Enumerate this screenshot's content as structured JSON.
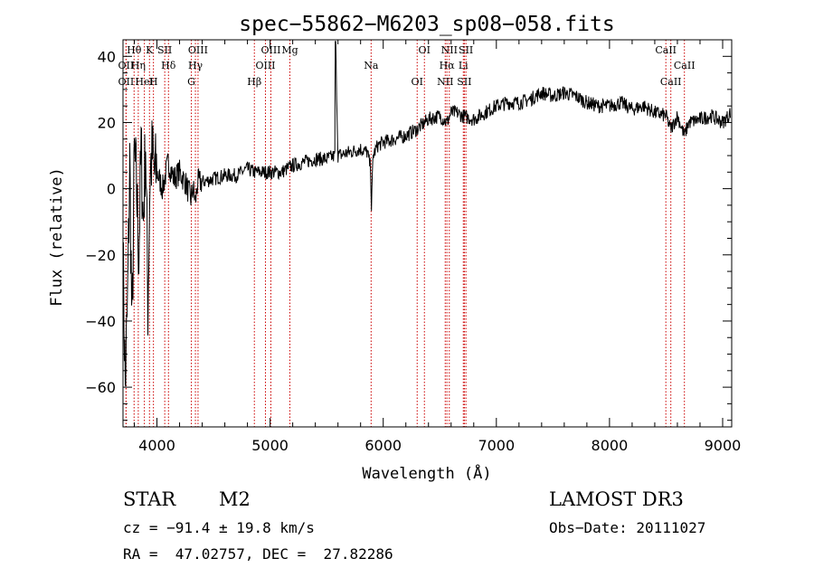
{
  "chart_data": {
    "type": "line",
    "title": "spec−55862−M6203_sp08−058.fits",
    "xlabel": "Wavelength (Å)",
    "ylabel": "Flux (relative)",
    "xlim": [
      3700,
      9080
    ],
    "ylim": [
      -72,
      45
    ],
    "x_ticks": [
      4000,
      5000,
      6000,
      7000,
      8000,
      9000
    ],
    "x_tick_labels": [
      "4000",
      "5000",
      "6000",
      "7000",
      "8000",
      "9000"
    ],
    "y_ticks": [
      -60,
      -40,
      -20,
      0,
      20,
      40
    ],
    "y_tick_labels": [
      "−60",
      "−40",
      "−20",
      "0",
      "20",
      "40"
    ],
    "series": [
      {
        "name": "spectrum",
        "x": [
          3700,
          3720,
          3740,
          3760,
          3780,
          3800,
          3820,
          3840,
          3860,
          3880,
          3900,
          3920,
          3940,
          3960,
          3980,
          4000,
          4050,
          4100,
          4150,
          4200,
          4250,
          4300,
          4320,
          4340,
          4360,
          4400,
          4500,
          4600,
          4700,
          4800,
          4861,
          4900,
          5000,
          5100,
          5200,
          5300,
          5400,
          5500,
          5577,
          5578,
          5600,
          5700,
          5800,
          5860,
          5890,
          5895,
          5910,
          5950,
          6000,
          6100,
          6200,
          6300,
          6400,
          6500,
          6563,
          6600,
          6650,
          6700,
          6800,
          6900,
          7000,
          7100,
          7200,
          7300,
          7400,
          7500,
          7600,
          7700,
          7800,
          7900,
          8000,
          8100,
          8200,
          8300,
          8400,
          8500,
          8542,
          8600,
          8662,
          8700,
          8800,
          8900,
          9000,
          9050,
          9080
        ],
        "y": [
          -20,
          -60,
          -35,
          8,
          -45,
          10,
          0,
          -20,
          12,
          -10,
          15,
          -35,
          6,
          10,
          4,
          5,
          0,
          8,
          3,
          5,
          2,
          -3,
          0,
          -4,
          2,
          2,
          3,
          4,
          4,
          6,
          5,
          5,
          5,
          5,
          7,
          8,
          9,
          9,
          10,
          45,
          10,
          11,
          12,
          11,
          6,
          -7,
          10,
          13,
          14,
          15,
          16,
          18,
          21,
          22,
          20,
          23,
          23,
          22,
          21,
          23,
          25,
          26,
          26,
          27,
          29,
          28,
          29,
          28,
          26,
          25,
          25,
          26,
          24,
          25,
          23,
          22,
          18,
          22,
          16,
          20,
          21,
          22,
          20,
          22,
          24
        ]
      }
    ],
    "annotations": [
      {
        "label": "Hθ",
        "x": 3798
      },
      {
        "label": "OII",
        "x": 3727
      },
      {
        "label": "OII",
        "x": 3727
      },
      {
        "label": "K",
        "x": 3934
      },
      {
        "label": "Hδ",
        "x": 4102
      },
      {
        "label": "HeI",
        "x": 3889
      },
      {
        "label": "SII",
        "x": 4069
      },
      {
        "label": "Hη",
        "x": 3835
      },
      {
        "label": "H",
        "x": 3969
      },
      {
        "label": "OIII",
        "x": 4363
      },
      {
        "label": "Hγ",
        "x": 4340
      },
      {
        "label": "G",
        "x": 4304
      },
      {
        "label": "OIII",
        "x": 5007
      },
      {
        "label": "OIII",
        "x": 4959
      },
      {
        "label": "Hβ",
        "x": 4861
      },
      {
        "label": "Mg",
        "x": 5175
      },
      {
        "label": "Na",
        "x": 5893
      },
      {
        "label": "OI",
        "x": 6300
      },
      {
        "label": "OI",
        "x": 6364
      },
      {
        "label": "Hα",
        "x": 6563
      },
      {
        "label": "SII",
        "x": 6717
      },
      {
        "label": "NII",
        "x": 6584
      },
      {
        "label": "Li",
        "x": 6708
      },
      {
        "label": "NII",
        "x": 6548
      },
      {
        "label": "SII",
        "x": 6731
      },
      {
        "label": "CaII",
        "x": 8662
      },
      {
        "label": "CaII",
        "x": 8542
      },
      {
        "label": "CaII",
        "x": 8498
      }
    ]
  },
  "info": {
    "class": "STAR",
    "subclass": "M2",
    "survey": "LAMOST DR3",
    "cz": "cz = −91.4 ± 19.8 km/s",
    "obs_date": "Obs−Date: 20111027",
    "coords": "RA =  47.02757, DEC =  27.82286"
  }
}
